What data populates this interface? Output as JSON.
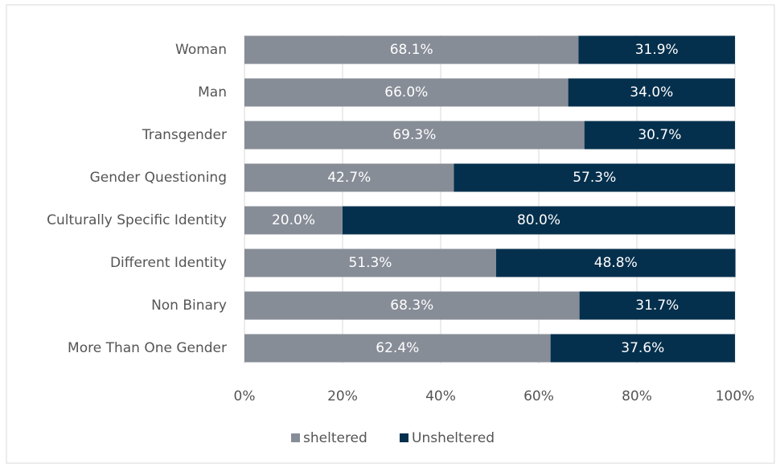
{
  "chart_data": {
    "type": "bar",
    "orientation": "horizontal",
    "stacked": true,
    "categories": [
      "Woman",
      "Man",
      "Transgender",
      "Gender Questioning",
      "Culturally Specific Identity",
      "Different Identity",
      "Non Binary",
      "More Than One Gender"
    ],
    "series": [
      {
        "name": "sheltered",
        "color": "#878d97",
        "values": [
          68.1,
          66.0,
          69.3,
          42.7,
          20.0,
          51.3,
          68.3,
          62.4
        ],
        "value_labels": [
          "68.1%",
          "66.0%",
          "69.3%",
          "42.7%",
          "20.0%",
          "51.3%",
          "68.3%",
          "62.4%"
        ]
      },
      {
        "name": "Unsheltered",
        "color": "#05304d",
        "values": [
          31.9,
          34.0,
          30.7,
          57.3,
          80.0,
          48.8,
          31.7,
          37.6
        ],
        "value_labels": [
          "31.9%",
          "34.0%",
          "30.7%",
          "57.3%",
          "80.0%",
          "48.8%",
          "31.7%",
          "37.6%"
        ]
      }
    ],
    "xlim": [
      0,
      100
    ],
    "xticks": [
      {
        "value": 0,
        "label": "0%"
      },
      {
        "value": 20,
        "label": "20%"
      },
      {
        "value": 40,
        "label": "40%"
      },
      {
        "value": 60,
        "label": "60%"
      },
      {
        "value": 80,
        "label": "80%"
      },
      {
        "value": 100,
        "label": "100%"
      }
    ],
    "grid": true,
    "legend": "bottom"
  }
}
